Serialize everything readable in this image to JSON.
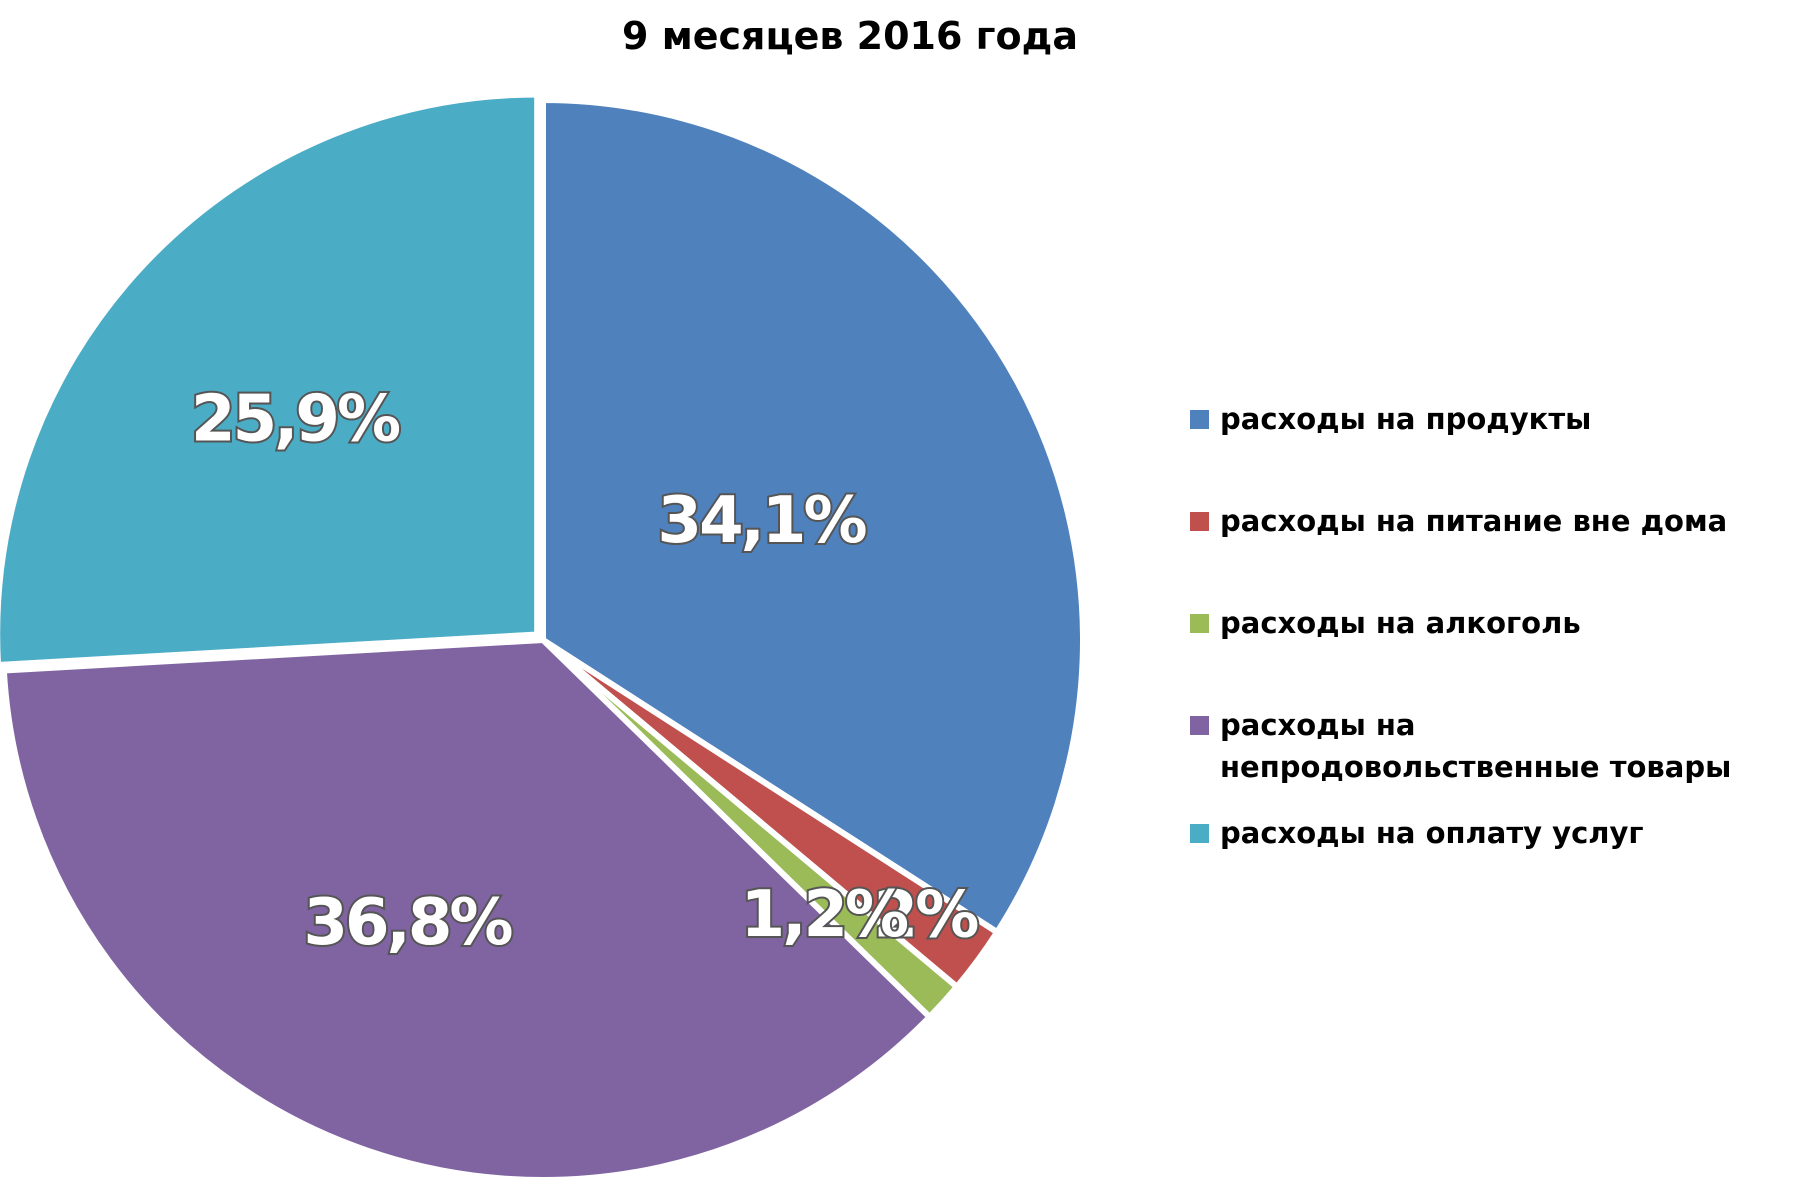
{
  "chart_data": {
    "type": "pie",
    "title": "9 месяцев  2016 года",
    "legend_position": "right",
    "slices": [
      {
        "name": "расходы на продукты",
        "value": 34.1,
        "label": "34,1%",
        "color": "#4F81BD"
      },
      {
        "name": "расходы на питание вне дома",
        "value": 2.0,
        "label": "2%",
        "color": "#C0504D"
      },
      {
        "name": "расходы на алкоголь",
        "value": 1.2,
        "label": "1,2%",
        "color": "#9BBB59"
      },
      {
        "name": "расходы на непродовольственные товары",
        "value": 36.8,
        "label": "36,8%",
        "color": "#8064A2"
      },
      {
        "name": "расходы на оплату услуг",
        "value": 25.9,
        "label": "25,9%",
        "color": "#4BACC6"
      }
    ]
  }
}
